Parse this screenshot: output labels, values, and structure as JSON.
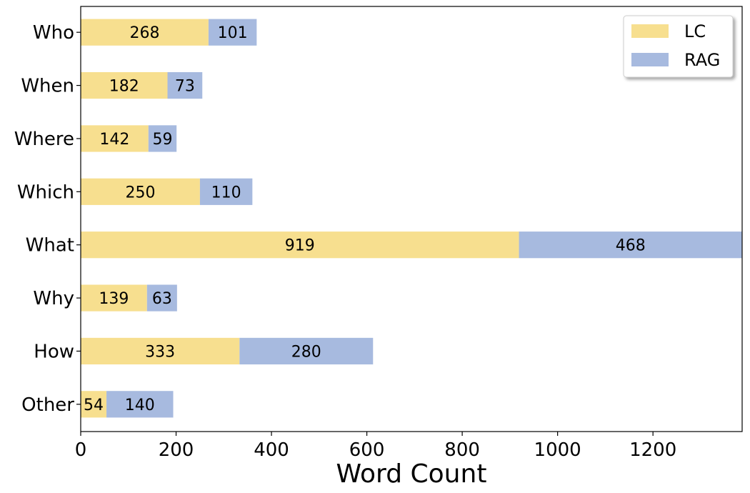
{
  "chart_data": {
    "type": "bar",
    "orientation": "horizontal",
    "stacked": true,
    "categories": [
      "Who",
      "When",
      "Where",
      "Which",
      "What",
      "Why",
      "How",
      "Other"
    ],
    "series": [
      {
        "name": "LC",
        "color": "#f7df8f",
        "values": [
          268,
          182,
          142,
          250,
          919,
          139,
          333,
          54
        ]
      },
      {
        "name": "RAG",
        "color": "#a7badf",
        "values": [
          101,
          73,
          59,
          110,
          468,
          63,
          280,
          140
        ]
      }
    ],
    "xlabel": "Word Count",
    "ylabel": "",
    "xlim": [
      0,
      1387
    ],
    "xticks": [
      "0",
      "200",
      "400",
      "600",
      "800",
      "1000",
      "1200"
    ],
    "grid": false,
    "legend_position": "top-right"
  }
}
